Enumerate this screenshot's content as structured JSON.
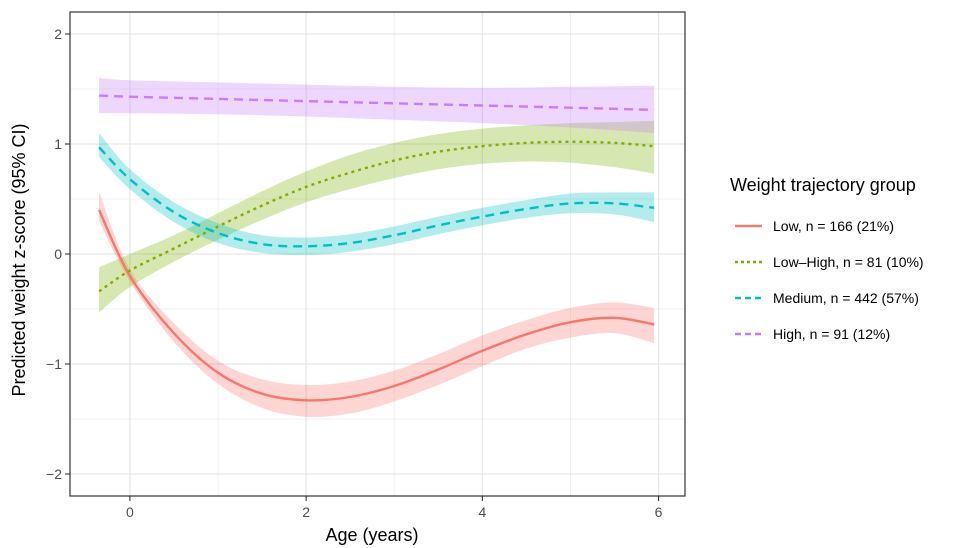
{
  "chart_data": {
    "type": "line",
    "title": "",
    "xlabel": "Age (years)",
    "ylabel": "Predicted weight z-score (95% CI)",
    "xlim": [
      -0.68,
      6.3
    ],
    "ylim": [
      -2.2,
      2.2
    ],
    "xticks": [
      0,
      2,
      4,
      6
    ],
    "yticks": [
      -2,
      -1,
      0,
      1,
      2
    ],
    "xtick_labels": [
      "0",
      "2",
      "4",
      "6"
    ],
    "ytick_labels": [
      "−2",
      "−1",
      "0",
      "1",
      "2"
    ],
    "grid": true,
    "legend_title": "Weight trajectory group",
    "legend_position": "right",
    "series": [
      {
        "name": "Low, n = 166 (21%)",
        "color": "#F8766D",
        "dash": "solid",
        "x": [
          -0.35,
          0,
          0.5,
          1,
          1.5,
          2,
          2.5,
          3,
          3.5,
          4,
          4.5,
          5,
          5.5,
          5.95
        ],
        "y": [
          0.4,
          -0.2,
          -0.72,
          -1.08,
          -1.27,
          -1.33,
          -1.3,
          -1.2,
          -1.05,
          -0.88,
          -0.73,
          -0.62,
          -0.58,
          -0.64
        ],
        "lower": [
          0.3,
          -0.25,
          -0.8,
          -1.18,
          -1.4,
          -1.48,
          -1.45,
          -1.34,
          -1.19,
          -1.02,
          -0.86,
          -0.76,
          -0.72,
          -0.81
        ],
        "upper": [
          0.56,
          -0.14,
          -0.63,
          -0.97,
          -1.14,
          -1.19,
          -1.16,
          -1.06,
          -0.91,
          -0.74,
          -0.6,
          -0.49,
          -0.44,
          -0.49
        ]
      },
      {
        "name": "Low–High, n = 81 (10%)",
        "color": "#7CAE00",
        "dash": "3,4",
        "x": [
          -0.35,
          0,
          0.5,
          1,
          1.5,
          2,
          2.5,
          3,
          3.5,
          4,
          4.5,
          5,
          5.5,
          5.95
        ],
        "y": [
          -0.34,
          -0.15,
          0.05,
          0.25,
          0.44,
          0.61,
          0.74,
          0.85,
          0.93,
          0.98,
          1.01,
          1.02,
          1.01,
          0.98
        ],
        "lower": [
          -0.53,
          -0.3,
          -0.07,
          0.13,
          0.31,
          0.47,
          0.59,
          0.69,
          0.77,
          0.82,
          0.84,
          0.83,
          0.79,
          0.73
        ],
        "upper": [
          -0.12,
          0.0,
          0.17,
          0.37,
          0.57,
          0.75,
          0.9,
          1.01,
          1.09,
          1.14,
          1.17,
          1.19,
          1.2,
          1.21
        ]
      },
      {
        "name": "Medium, n = 442 (57%)",
        "color": "#00BFC4",
        "dash": "9,6",
        "x": [
          -0.35,
          0,
          0.5,
          1,
          1.5,
          2,
          2.5,
          3,
          3.5,
          4,
          4.5,
          5,
          5.5,
          5.95
        ],
        "y": [
          0.97,
          0.68,
          0.38,
          0.19,
          0.09,
          0.07,
          0.1,
          0.17,
          0.26,
          0.34,
          0.41,
          0.46,
          0.46,
          0.42
        ],
        "lower": [
          0.88,
          0.59,
          0.29,
          0.1,
          0.01,
          -0.01,
          0.02,
          0.09,
          0.18,
          0.26,
          0.33,
          0.37,
          0.36,
          0.29
        ],
        "upper": [
          1.1,
          0.77,
          0.47,
          0.28,
          0.17,
          0.15,
          0.18,
          0.25,
          0.34,
          0.42,
          0.49,
          0.55,
          0.56,
          0.56
        ]
      },
      {
        "name": "High, n = 91 (12%)",
        "color": "#C77CFF",
        "dash": "9,6",
        "x": [
          -0.35,
          0,
          1,
          2,
          3,
          4,
          5,
          5.95
        ],
        "y": [
          1.44,
          1.43,
          1.41,
          1.39,
          1.37,
          1.35,
          1.33,
          1.31
        ],
        "lower": [
          1.28,
          1.28,
          1.27,
          1.25,
          1.22,
          1.19,
          1.15,
          1.1
        ],
        "upper": [
          1.6,
          1.58,
          1.56,
          1.54,
          1.52,
          1.51,
          1.52,
          1.53
        ]
      }
    ]
  }
}
